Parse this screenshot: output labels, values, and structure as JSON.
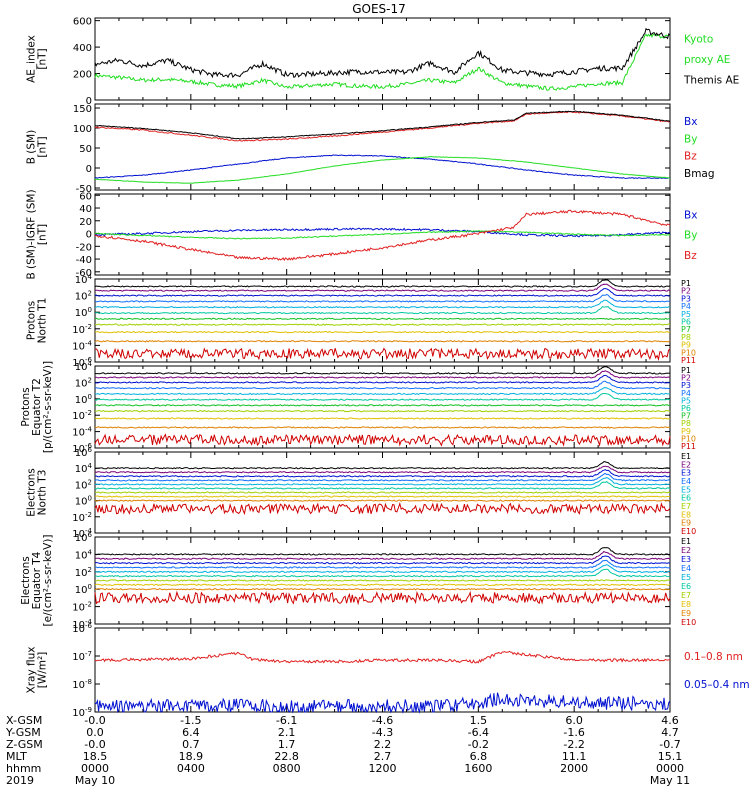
{
  "title": "GOES-17",
  "colors": {
    "black": "#000000",
    "red": "#e02020",
    "green": "#22dd22",
    "blue": "#0010d0",
    "grid": "#000000"
  },
  "chart_data": [
    {
      "type": "line",
      "id": "ae",
      "ylabel": [
        "AE_index",
        "[nT]"
      ],
      "ylim": [
        0,
        620
      ],
      "yticks": [
        "0",
        "200",
        "400",
        "600"
      ],
      "ytick_values": [
        0,
        200,
        400,
        600
      ],
      "log": false,
      "series": [
        {
          "name": "Kyoto",
          "color": "#22dd22",
          "label_lines": [
            "Kyoto",
            "proxy AE"
          ],
          "label_color": "#22dd22",
          "x": [
            0,
            1,
            2,
            3,
            4,
            5,
            6,
            7,
            8,
            9,
            10,
            11,
            12,
            13,
            14,
            15,
            16,
            17,
            18,
            19,
            20,
            21,
            22,
            23,
            24
          ],
          "values": [
            185,
            170,
            150,
            155,
            140,
            115,
            105,
            150,
            95,
            110,
            120,
            105,
            100,
            120,
            150,
            130,
            240,
            130,
            105,
            85,
            100,
            125,
            130,
            490,
            480
          ],
          "noise": 15
        },
        {
          "name": "Themis AE",
          "color": "#000000",
          "label_lines": [
            "Themis AE"
          ],
          "label_color": "#000000",
          "x": [
            0,
            1,
            2,
            3,
            4,
            5,
            6,
            7,
            8,
            9,
            10,
            11,
            12,
            13,
            14,
            15,
            16,
            17,
            18,
            19,
            20,
            21,
            22,
            23,
            24
          ],
          "values": [
            270,
            300,
            260,
            300,
            230,
            190,
            190,
            275,
            190,
            195,
            205,
            215,
            210,
            210,
            280,
            210,
            360,
            225,
            205,
            195,
            215,
            240,
            240,
            520,
            480
          ],
          "noise": 20
        }
      ]
    },
    {
      "type": "line",
      "id": "bsm",
      "ylabel": [
        "B (SM)",
        "[nT]"
      ],
      "ylim": [
        -55,
        160
      ],
      "yticks": [
        "-50",
        "0",
        "50",
        "100",
        "150"
      ],
      "ytick_values": [
        -50,
        0,
        50,
        100,
        150
      ],
      "log": false,
      "series": [
        {
          "name": "Bx",
          "color": "#0010d0",
          "label_lines": [
            "Bx"
          ],
          "label_color": "#0010d0",
          "x": [
            0,
            2,
            4,
            6,
            8,
            10,
            12,
            14,
            16,
            18,
            20,
            22,
            24
          ],
          "values": [
            -25,
            -18,
            -5,
            10,
            25,
            32,
            30,
            22,
            10,
            -5,
            -18,
            -25,
            -25
          ],
          "noise": 1
        },
        {
          "name": "By",
          "color": "#22dd22",
          "label_lines": [
            "By"
          ],
          "label_color": "#22dd22",
          "x": [
            0,
            2,
            4,
            6,
            8,
            10,
            12,
            14,
            16,
            18,
            20,
            22,
            24
          ],
          "values": [
            -28,
            -35,
            -38,
            -30,
            -15,
            5,
            20,
            28,
            25,
            15,
            0,
            -15,
            -25
          ],
          "noise": 0.5
        },
        {
          "name": "Bz",
          "color": "#e02020",
          "label_lines": [
            "Bz"
          ],
          "label_color": "#e02020",
          "x": [
            0,
            2,
            4,
            6,
            8,
            10,
            12,
            14,
            16,
            17.5,
            18,
            20,
            22,
            24
          ],
          "values": [
            102,
            95,
            82,
            68,
            72,
            80,
            90,
            100,
            112,
            118,
            135,
            140,
            130,
            115
          ],
          "noise": 1.5
        },
        {
          "name": "Bmag",
          "color": "#000000",
          "label_lines": [
            "Bmag"
          ],
          "label_color": "#000000",
          "x": [
            0,
            2,
            4,
            6,
            8,
            10,
            12,
            14,
            16,
            17.5,
            18,
            20,
            22,
            24
          ],
          "values": [
            106,
            99,
            88,
            73,
            78,
            85,
            93,
            103,
            114,
            120,
            137,
            142,
            132,
            117
          ],
          "noise": 1
        }
      ]
    },
    {
      "type": "line",
      "id": "bigrf",
      "ylabel": [
        "B (SM)-IGRF (SM)",
        "[nT]"
      ],
      "ylim": [
        -65,
        62
      ],
      "yticks": [
        "-60",
        "-40",
        "-20",
        "0",
        "20",
        "40",
        "60"
      ],
      "ytick_values": [
        -60,
        -40,
        -20,
        0,
        20,
        40,
        60
      ],
      "log": false,
      "series": [
        {
          "name": "Bx",
          "color": "#0010d0",
          "label_lines": [
            "Bx"
          ],
          "label_color": "#0010d0",
          "x": [
            0,
            2,
            4,
            6,
            8,
            10,
            12,
            14,
            16,
            18,
            20,
            22,
            24
          ],
          "values": [
            -2,
            0,
            3,
            5,
            6,
            7,
            7,
            6,
            3,
            -2,
            -4,
            -2,
            2
          ],
          "noise": 1.5
        },
        {
          "name": "By",
          "color": "#22dd22",
          "label_lines": [
            "By"
          ],
          "label_color": "#22dd22",
          "x": [
            0,
            2,
            4,
            6,
            8,
            10,
            12,
            14,
            16,
            18,
            20,
            22,
            24
          ],
          "values": [
            0,
            -3,
            -6,
            -8,
            -7,
            -4,
            -1,
            2,
            4,
            2,
            -1,
            -3,
            -2
          ],
          "noise": 0.8
        },
        {
          "name": "Bz",
          "color": "#e02020",
          "label_lines": [
            "Bz"
          ],
          "label_color": "#e02020",
          "x": [
            0,
            2,
            4,
            6,
            8,
            10,
            12,
            14,
            16,
            17.5,
            18,
            20,
            22,
            24
          ],
          "values": [
            -3,
            -12,
            -25,
            -38,
            -40,
            -32,
            -22,
            -10,
            0,
            10,
            30,
            35,
            30,
            12
          ],
          "noise": 2
        }
      ]
    },
    {
      "type": "line",
      "id": "prot_north",
      "ylabel": [
        "Protons",
        "North T1"
      ],
      "ylim": [
        -6,
        4
      ],
      "yticks": [
        "10^4",
        "10^2",
        "10^0",
        "10^-2",
        "10^-4",
        "10^-6"
      ],
      "ytick_values": [
        4,
        2,
        0,
        -2,
        -4,
        -6
      ],
      "log": true,
      "channels": [
        "P1",
        "P2",
        "P3",
        "P4",
        "P5",
        "P6",
        "P7",
        "P8",
        "P9",
        "P10",
        "P11"
      ],
      "channel_colors": [
        "#000000",
        "#7a007a",
        "#0010d0",
        "#1070ff",
        "#00b0e0",
        "#00c8a0",
        "#10c020",
        "#a0d000",
        "#e0c000",
        "#e08000",
        "#d00000"
      ],
      "channel_levels": [
        3.1,
        2.6,
        2.0,
        1.3,
        0.6,
        -0.1,
        -0.8,
        -1.5,
        -2.4,
        -3.5,
        -5
      ]
    },
    {
      "type": "line",
      "id": "prot_eq",
      "ylabel": [
        "Protons",
        "Equator T2",
        "[p/(cm²-s-sr-keV)]"
      ],
      "ylim": [
        -6,
        4
      ],
      "yticks": [
        "10^4",
        "10^2",
        "10^0",
        "10^-2",
        "10^-4",
        "10^-6"
      ],
      "ytick_values": [
        4,
        2,
        0,
        -2,
        -4,
        -6
      ],
      "log": true,
      "channels": [
        "P1",
        "P2",
        "P3",
        "P4",
        "P5",
        "P6",
        "P7",
        "P8",
        "P9",
        "P10",
        "P11"
      ],
      "channel_colors": [
        "#000000",
        "#7a007a",
        "#0010d0",
        "#1070ff",
        "#00b0e0",
        "#00c8a0",
        "#10c020",
        "#a0d000",
        "#e0c000",
        "#e08000",
        "#d00000"
      ],
      "channel_levels": [
        3.1,
        2.6,
        2.0,
        1.3,
        0.6,
        -0.1,
        -0.8,
        -1.5,
        -2.4,
        -3.5,
        -5
      ]
    },
    {
      "type": "line",
      "id": "elec_north",
      "ylabel": [
        "Electrons",
        "North T3"
      ],
      "ylim": [
        -4,
        6
      ],
      "yticks": [
        "10^6",
        "10^4",
        "10^2",
        "10^0",
        "10^-2",
        "10^-4"
      ],
      "ytick_values": [
        6,
        4,
        2,
        0,
        -2,
        -4
      ],
      "log": true,
      "channels": [
        "E1",
        "E2",
        "E3",
        "E4",
        "E5",
        "E6",
        "E7",
        "E8",
        "E9",
        "E10"
      ],
      "channel_colors": [
        "#000000",
        "#7a007a",
        "#0010d0",
        "#1070ff",
        "#00b0e0",
        "#00c8a0",
        "#a0d000",
        "#e0c000",
        "#e08000",
        "#d00000"
      ],
      "channel_levels": [
        4.0,
        3.5,
        3.0,
        2.5,
        2.0,
        1.5,
        1.0,
        0.5,
        0,
        -1
      ]
    },
    {
      "type": "line",
      "id": "elec_eq",
      "ylabel": [
        "Electrons",
        "Equator T4",
        "[e/(cm²-s-sr-keV)]"
      ],
      "ylim": [
        -4,
        6
      ],
      "yticks": [
        "10^6",
        "10^4",
        "10^2",
        "10^0",
        "10^-2",
        "10^-4"
      ],
      "ytick_values": [
        6,
        4,
        2,
        0,
        -2,
        -4
      ],
      "log": true,
      "channels": [
        "E1",
        "E2",
        "E3",
        "E4",
        "E5",
        "E6",
        "E7",
        "E8",
        "E9",
        "E10"
      ],
      "channel_colors": [
        "#000000",
        "#7a007a",
        "#0010d0",
        "#1070ff",
        "#00b0e0",
        "#00c8a0",
        "#a0d000",
        "#e0c000",
        "#e08000",
        "#d00000"
      ],
      "channel_levels": [
        4.0,
        3.5,
        3.0,
        2.5,
        2.0,
        1.5,
        1.0,
        0.5,
        0,
        -1
      ]
    },
    {
      "type": "line",
      "id": "xray",
      "ylabel": [
        "Xray flux",
        "[W/m²]"
      ],
      "ylim": [
        -9,
        -6
      ],
      "yticks": [
        "10^-6",
        "10^-7",
        "10^-8",
        "10^-9"
      ],
      "ytick_values": [
        -6,
        -7,
        -8,
        -9
      ],
      "log": true,
      "series": [
        {
          "name": "0.1-0.8 nm",
          "color": "#e02020",
          "label_lines": [
            "0.1–0.8 nm"
          ],
          "label_color": "#e02020",
          "x": [
            0,
            4,
            5,
            6,
            6.5,
            7,
            8,
            10,
            12,
            14,
            16,
            17,
            18,
            20,
            22,
            24
          ],
          "values": [
            -7.15,
            -7.1,
            -7.0,
            -6.9,
            -7.1,
            -7.15,
            -7.2,
            -7.2,
            -7.15,
            -7.15,
            -7.2,
            -6.85,
            -6.95,
            -7.15,
            -7.15,
            -7.15
          ],
          "noise": 0.05
        },
        {
          "name": "0.05-0.4 nm",
          "color": "#0010d0",
          "label_lines": [
            "0.05–0.4 nm"
          ],
          "label_color": "#0010d0",
          "x": [
            0,
            4,
            6,
            8,
            10,
            12,
            14,
            16,
            17,
            18,
            20,
            22,
            24
          ],
          "values": [
            -8.8,
            -8.8,
            -8.75,
            -8.8,
            -8.8,
            -8.8,
            -8.8,
            -8.7,
            -8.5,
            -8.6,
            -8.65,
            -8.7,
            -8.7
          ],
          "noise": 0.25
        }
      ]
    }
  ],
  "ephemeris": {
    "rows": [
      {
        "name": "X-GSM",
        "values": [
          "-0.0",
          "-1.5",
          "-6.1",
          "-4.6",
          "1.5",
          "6.0",
          "4.6"
        ]
      },
      {
        "name": "Y-GSM",
        "values": [
          "0.0",
          "6.4",
          "2.1",
          "-4.3",
          "-6.4",
          "-1.6",
          "4.7"
        ]
      },
      {
        "name": "Z-GSM",
        "values": [
          "-0.0",
          "0.7",
          "1.7",
          "2.2",
          "-0.2",
          "-2.2",
          "-0.7"
        ]
      },
      {
        "name": "MLT",
        "values": [
          "18.5",
          "18.9",
          "22.8",
          "2.7",
          "6.8",
          "11.1",
          "15.1"
        ]
      },
      {
        "name": "hhmm",
        "values": [
          "0000",
          "0400",
          "0800",
          "1200",
          "1600",
          "2000",
          "0000"
        ]
      },
      {
        "name": "2019",
        "values": [
          "May 10",
          "",
          "",
          "",
          "",
          "",
          "May 11"
        ]
      }
    ]
  }
}
